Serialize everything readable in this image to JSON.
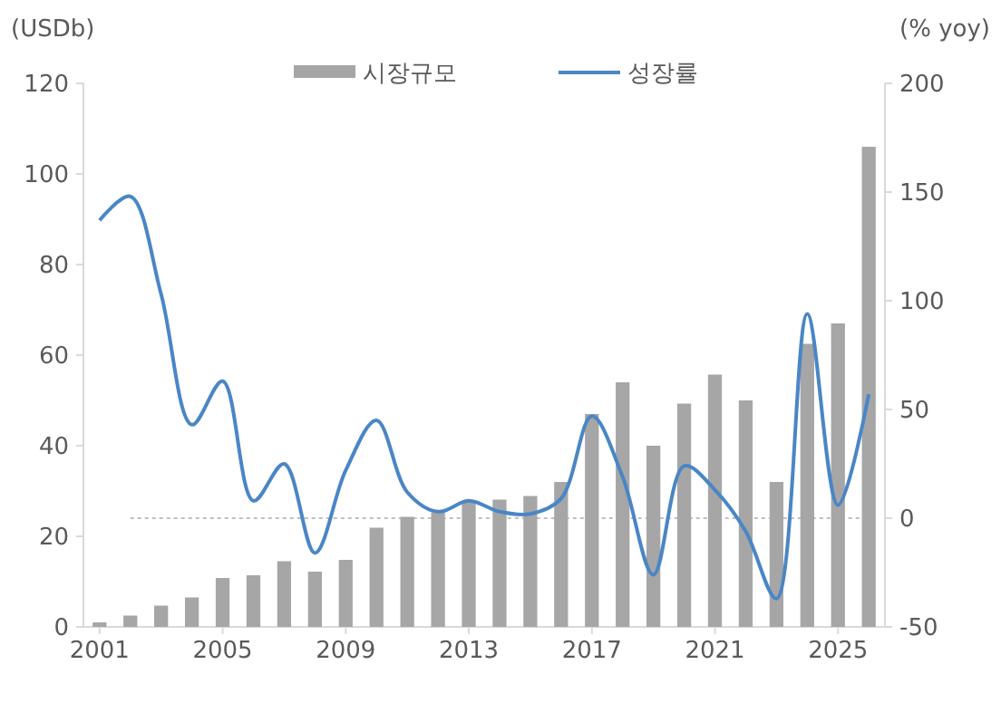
{
  "chart_data": {
    "type": "bar",
    "ylabel": "(USDb)",
    "y2label": "(% yoy)",
    "categories": [
      "2001",
      null,
      null,
      null,
      "2005",
      null,
      null,
      null,
      "2009",
      null,
      null,
      null,
      "2013",
      null,
      null,
      null,
      "2017",
      null,
      null,
      null,
      "2021",
      null,
      null,
      null,
      "2025",
      null
    ],
    "series": [
      {
        "name": "시장규모",
        "color": "#a6a6a6",
        "values": [
          1,
          2.5,
          4.7,
          6.5,
          10.8,
          11.4,
          14.5,
          12.2,
          14.8,
          21.9,
          24.3,
          25.3,
          27.7,
          28.1,
          28.9,
          32,
          47,
          54,
          40,
          49.3,
          55.7,
          50,
          32,
          62.5,
          67,
          106
        ]
      },
      {
        "name": "성장률",
        "type": "line",
        "axis": "y2",
        "color": "#4a86c5",
        "values": [
          137,
          148,
          103,
          43,
          63,
          8,
          25,
          -16,
          22,
          45,
          12,
          3,
          8,
          3,
          2,
          9,
          47,
          19,
          -26,
          24,
          13,
          -6,
          -37,
          94,
          6,
          57
        ]
      }
    ],
    "ylim": [
      0,
      120
    ],
    "yticks": [
      0,
      20,
      40,
      60,
      80,
      100,
      120
    ],
    "y2lim": [
      -50,
      200
    ],
    "y2ticks": [
      -50,
      0,
      50,
      100,
      150,
      200
    ],
    "ref_lines": [
      {
        "axis": "y2",
        "value": 0,
        "color": "#bfbfbf",
        "line_style": "dotted"
      }
    ],
    "legend": "top",
    "grid": false
  }
}
